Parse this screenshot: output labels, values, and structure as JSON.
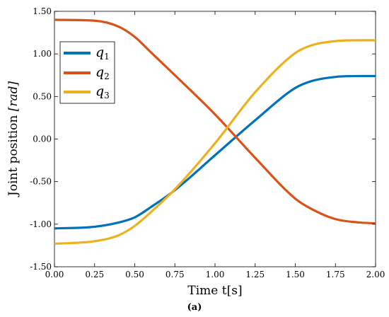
{
  "chart_data": {
    "type": "line",
    "title": "",
    "xlabel": "Time t[s]",
    "ylabel_main": "Joint position ",
    "ylabel_unit": "[rad]",
    "xlim": [
      0,
      2
    ],
    "ylim": [
      -1.5,
      1.5
    ],
    "x_ticks": [
      "0.00",
      "0.25",
      "0.50",
      "0.75",
      "1.00",
      "1.25",
      "1.50",
      "1.75",
      "2.00"
    ],
    "y_ticks": [
      "-1.50",
      "-1.00",
      "-0.50",
      "0.00",
      "0.50",
      "1.00",
      "1.50"
    ],
    "grid": false,
    "legend_position": "top-left",
    "caption": "(a)",
    "x": [
      0.0,
      0.25,
      0.4,
      0.5,
      0.6,
      0.75,
      1.0,
      1.25,
      1.5,
      1.6,
      1.75,
      1.9,
      2.0
    ],
    "series": [
      {
        "name": "q",
        "subscript": "1",
        "color": "#0072BD",
        "values": [
          -1.05,
          -1.03,
          -0.98,
          -0.92,
          -0.8,
          -0.6,
          -0.19,
          0.22,
          0.6,
          0.68,
          0.73,
          0.74,
          0.74
        ]
      },
      {
        "name": "q",
        "subscript": "2",
        "color": "#D95319",
        "values": [
          1.4,
          1.39,
          1.32,
          1.2,
          1.02,
          0.75,
          0.29,
          -0.22,
          -0.7,
          -0.82,
          -0.94,
          -0.98,
          -0.99
        ]
      },
      {
        "name": "q",
        "subscript": "3",
        "color": "#EDB120",
        "values": [
          -1.23,
          -1.2,
          -1.13,
          -1.02,
          -0.86,
          -0.59,
          -0.05,
          0.55,
          1.01,
          1.1,
          1.15,
          1.16,
          1.16
        ]
      }
    ]
  }
}
